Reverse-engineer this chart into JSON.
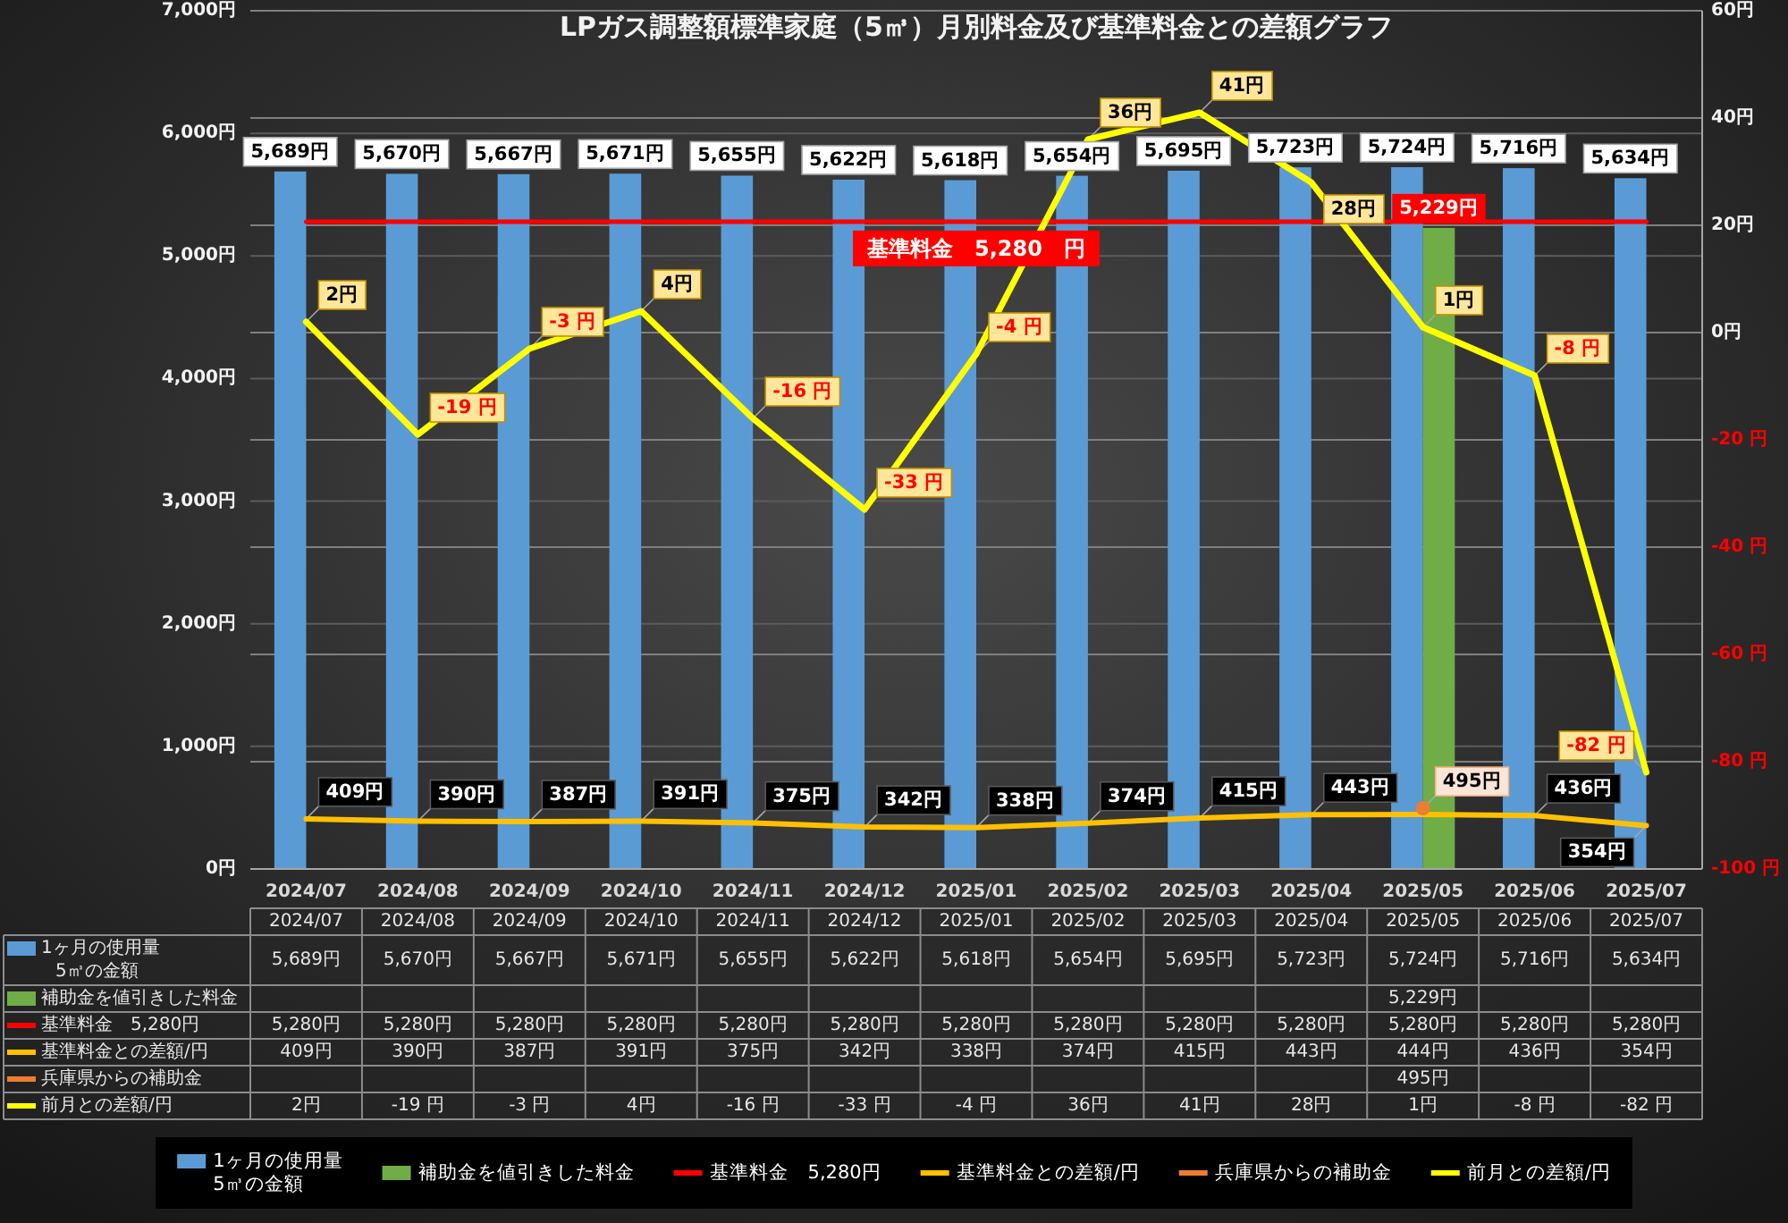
{
  "chart_data": {
    "type": "bar",
    "title": "LPガス調整額標準家庭（5㎥）月別料金及び基準料金との差額グラフ",
    "categories": [
      "2024/07",
      "2024/08",
      "2024/09",
      "2024/10",
      "2024/11",
      "2024/12",
      "2025/01",
      "2025/02",
      "2025/03",
      "2025/04",
      "2025/05",
      "2025/06",
      "2025/07"
    ],
    "series": [
      {
        "name": "1ヶ月の使用量\n5㎥の金額",
        "type": "bar",
        "color": "#5b9bd5",
        "values": [
          5689,
          5670,
          5667,
          5671,
          5655,
          5622,
          5618,
          5654,
          5695,
          5723,
          5724,
          5716,
          5634
        ],
        "value_labels": [
          "5,689円",
          "5,670円",
          "5,667円",
          "5,671円",
          "5,655円",
          "5,622円",
          "5,618円",
          "5,654円",
          "5,695円",
          "5,723円",
          "5,724円",
          "5,716円",
          "5,634円"
        ]
      },
      {
        "name": "補助金を値引きした料金",
        "type": "bar",
        "color": "#70ad47",
        "values": [
          null,
          null,
          null,
          null,
          null,
          null,
          null,
          null,
          null,
          null,
          5229,
          null,
          null
        ],
        "value_labels": [
          null,
          null,
          null,
          null,
          null,
          null,
          null,
          null,
          null,
          null,
          "5,229円",
          null,
          null
        ]
      },
      {
        "name": "基準料金　5,280円",
        "type": "line",
        "color": "#ff0000",
        "data_labels": false,
        "values": [
          5280,
          5280,
          5280,
          5280,
          5280,
          5280,
          5280,
          5280,
          5280,
          5280,
          5280,
          5280,
          5280
        ],
        "value_labels": [
          "5,280円",
          "5,280円",
          "5,280円",
          "5,280円",
          "5,280円",
          "5,280円",
          "5,280円",
          "5,280円",
          "5,280円",
          "5,280円",
          "5,280円",
          "5,280円",
          "5,280円"
        ]
      },
      {
        "name": "基準料金との差額/円",
        "type": "line",
        "color": "#ffc000",
        "values": [
          409,
          390,
          387,
          391,
          375,
          342,
          338,
          374,
          415,
          443,
          444,
          436,
          354
        ],
        "value_labels": [
          "409円",
          "390円",
          "387円",
          "391円",
          "375円",
          "342円",
          "338円",
          "374円",
          "415円",
          "443円",
          "444円",
          "436円",
          "354円"
        ]
      },
      {
        "name": "兵庫県からの補助金",
        "type": "line",
        "color": "#ed7d31",
        "marker": "circle",
        "values": [
          null,
          null,
          null,
          null,
          null,
          null,
          null,
          null,
          null,
          null,
          495,
          null,
          null
        ],
        "value_labels": [
          null,
          null,
          null,
          null,
          null,
          null,
          null,
          null,
          null,
          null,
          "495円",
          null,
          null
        ]
      },
      {
        "name": "前月との差額/円",
        "type": "line",
        "color": "#ffff00",
        "axis": "y2",
        "values": [
          2,
          -19,
          -3,
          4,
          -16,
          -33,
          -4,
          36,
          41,
          28,
          1,
          -8,
          -82
        ],
        "value_labels": [
          "2円",
          "-19 円",
          "-3 円",
          "4円",
          "-16 円",
          "-33 円",
          "-4 円",
          "36円",
          "41円",
          "28円",
          "1円",
          "-8 円",
          "-82 円"
        ]
      }
    ],
    "ylim": [
      0,
      7000
    ],
    "yticks": [
      {
        "value": 0,
        "label": "0円"
      },
      {
        "value": 1000,
        "label": "1,000円"
      },
      {
        "value": 2000,
        "label": "2,000円"
      },
      {
        "value": 3000,
        "label": "3,000円"
      },
      {
        "value": 4000,
        "label": "4,000円"
      },
      {
        "value": 5000,
        "label": "5,000円"
      },
      {
        "value": 6000,
        "label": "6,000円"
      },
      {
        "value": 7000,
        "label": "7,000円"
      }
    ],
    "y2lim": [
      -100,
      60
    ],
    "y2ticks": [
      {
        "value": -100,
        "label": "-100 円"
      },
      {
        "value": -80,
        "label": "-80 円"
      },
      {
        "value": -60,
        "label": "-60 円"
      },
      {
        "value": -40,
        "label": "-40 円"
      },
      {
        "value": -20,
        "label": "-20 円"
      },
      {
        "value": 0,
        "label": "0円"
      },
      {
        "value": 20,
        "label": "20円"
      },
      {
        "value": 40,
        "label": "40円"
      },
      {
        "value": 60,
        "label": "60円"
      }
    ],
    "grid": true,
    "legend": "bottom",
    "annotations": [
      {
        "text": "基準料金　5,280　円",
        "x": "2025/01",
        "y": 5280
      }
    ]
  }
}
